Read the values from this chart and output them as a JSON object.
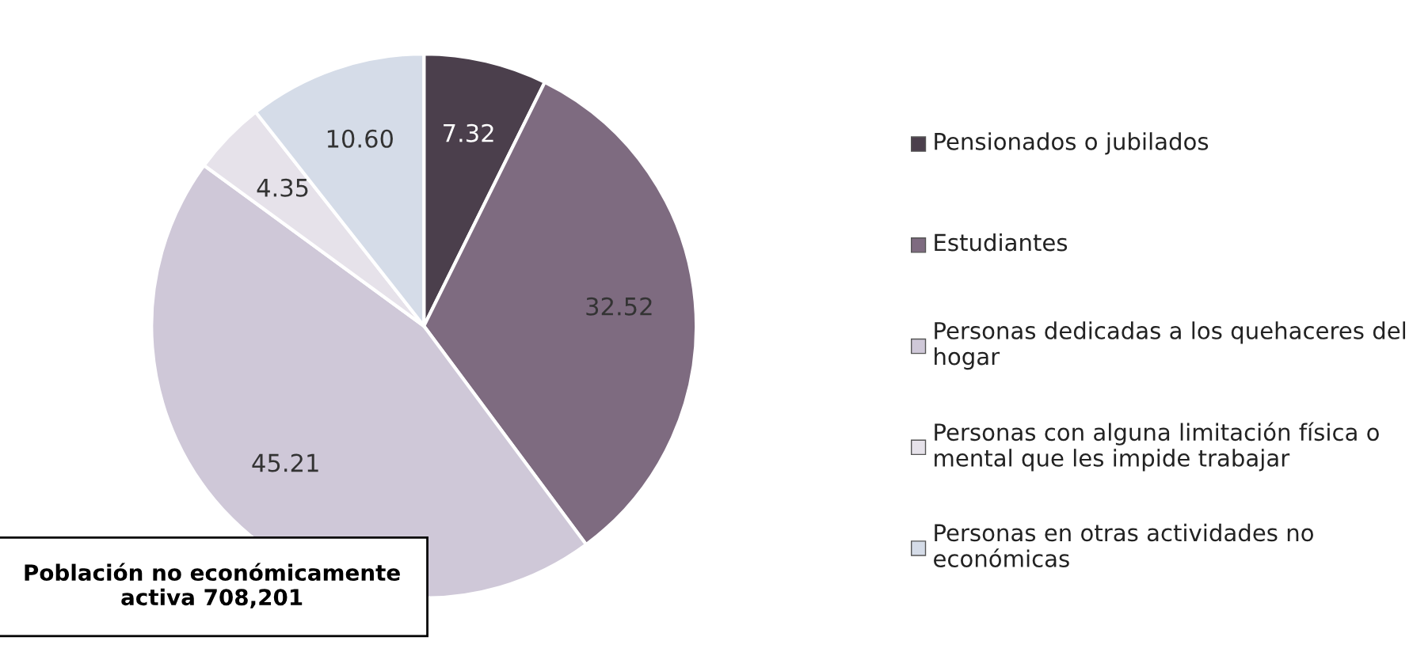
{
  "chart_data": {
    "type": "pie",
    "categories": [
      "Pensionados o jubilados",
      "Estudiantes",
      "Personas dedicadas a los quehaceres del hogar",
      "Personas con alguna limitación física o mental que les impide trabajar",
      "Personas en otras actividades no económicas"
    ],
    "values": [
      7.32,
      32.52,
      45.21,
      4.35,
      10.6
    ],
    "value_labels": [
      "7.32",
      "32.52",
      "45.21",
      "4.35",
      "10.60"
    ],
    "colors": [
      "#4b3f4c",
      "#7e6b80",
      "#cfc8d8",
      "#e6e2ea",
      "#d5dce8"
    ],
    "legend": "right",
    "annotations": [
      "Población no económicamente activa 708,201"
    ]
  }
}
